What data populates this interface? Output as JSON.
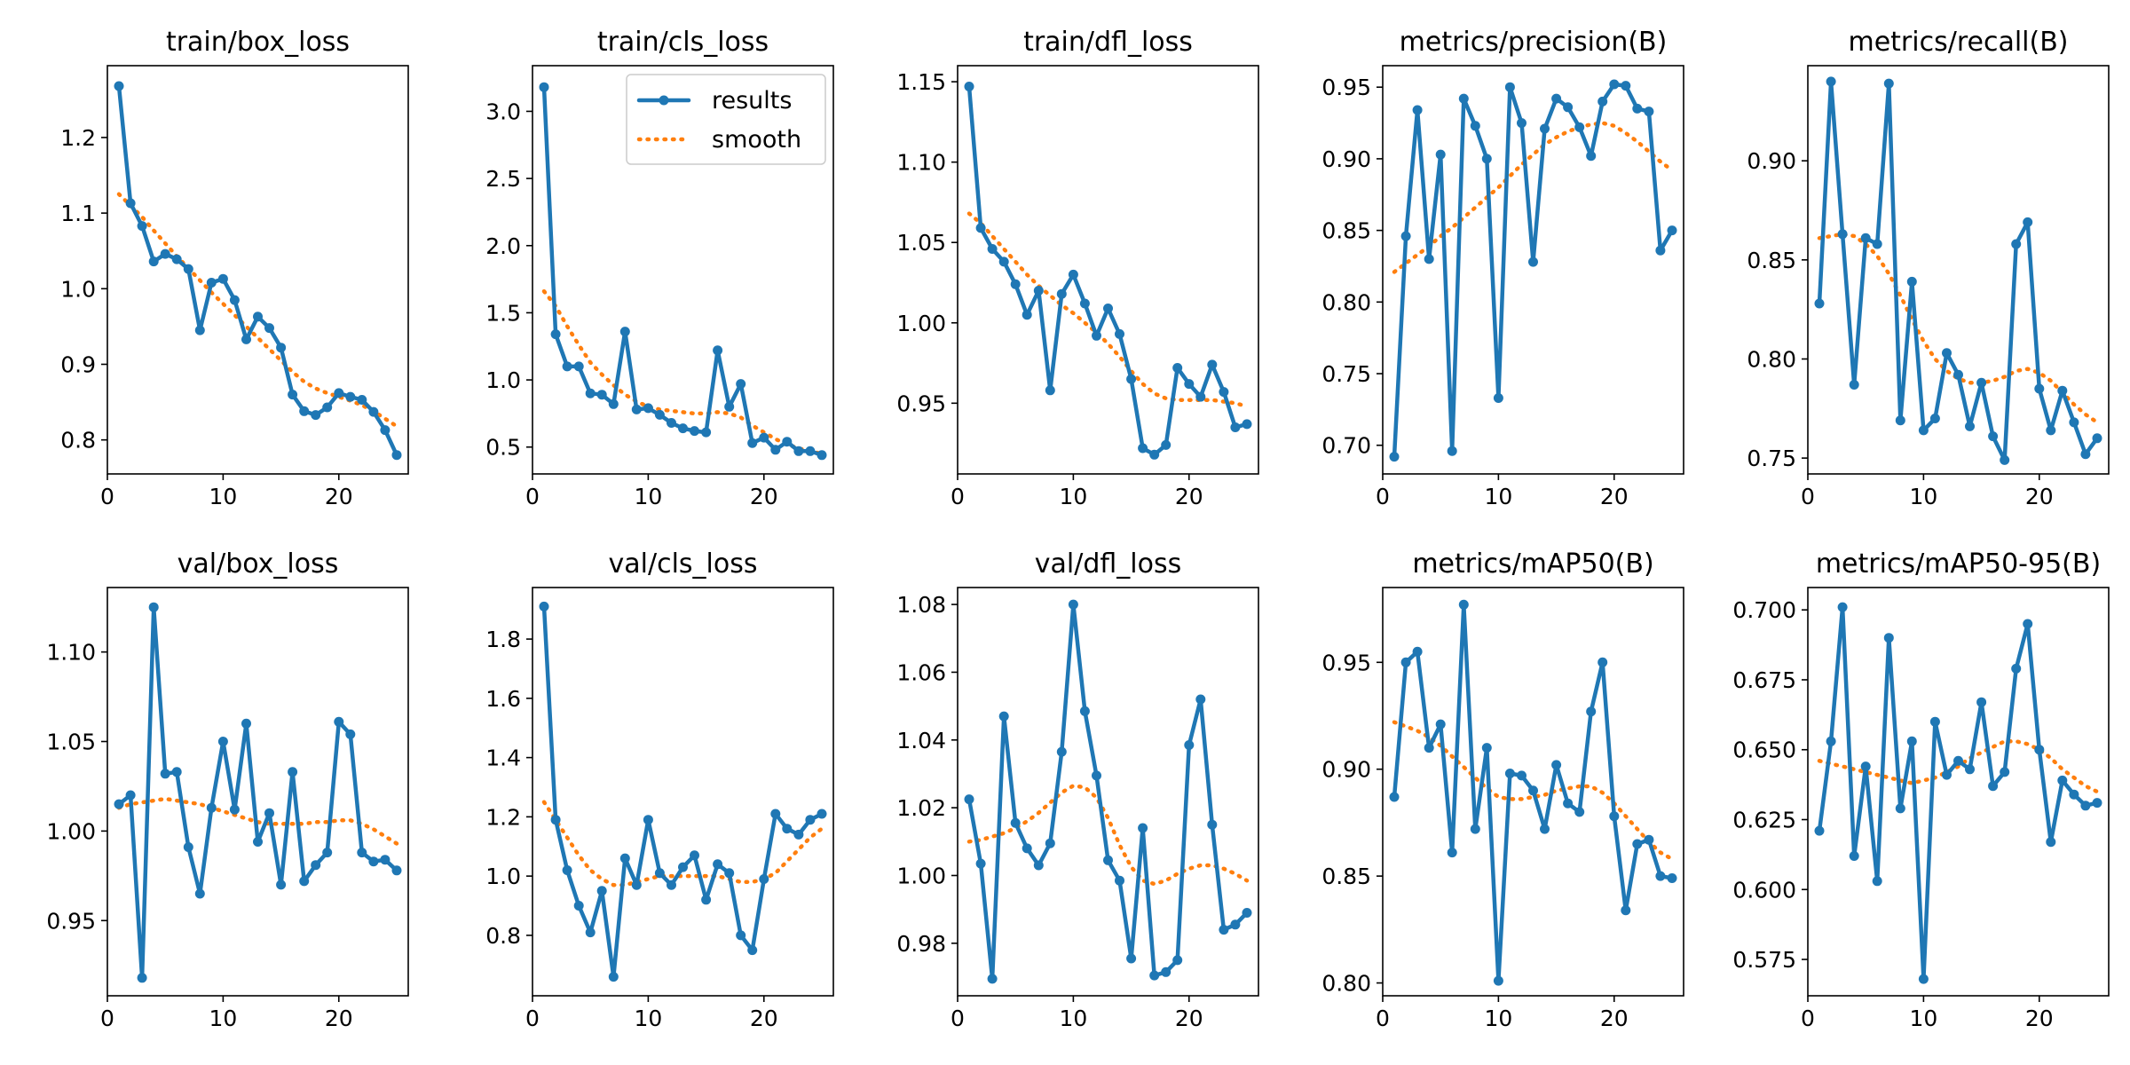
{
  "colors": {
    "results": "#1f77b4",
    "smooth": "#ff7f0e"
  },
  "chart_data": [
    {
      "type": "line",
      "title": "train/box_loss",
      "xlim": [
        0,
        26
      ],
      "ylim": [
        0.755,
        1.295
      ],
      "xticks": [
        0,
        10,
        20
      ],
      "yticks": [
        0.8,
        0.9,
        1.0,
        1.1,
        1.2
      ],
      "ytick_labels": [
        "0.8",
        "0.9",
        "1.0",
        "1.1",
        "1.2"
      ],
      "x": [
        1,
        2,
        3,
        4,
        5,
        6,
        7,
        8,
        9,
        10,
        11,
        12,
        13,
        14,
        15,
        16,
        17,
        18,
        19,
        20,
        21,
        22,
        23,
        24,
        25
      ],
      "series": [
        {
          "name": "results",
          "values": [
            1.268,
            1.113,
            1.083,
            1.036,
            1.046,
            1.039,
            1.026,
            0.945,
            1.008,
            1.013,
            0.985,
            0.933,
            0.963,
            0.948,
            0.922,
            0.86,
            0.838,
            0.833,
            0.843,
            0.862,
            0.857,
            0.853,
            0.837,
            0.813,
            0.78
          ]
        },
        {
          "name": "smooth",
          "values": [
            1.125,
            1.11,
            1.095,
            1.077,
            1.06,
            1.043,
            1.027,
            1.011,
            0.995,
            0.98,
            0.965,
            0.95,
            0.935,
            0.92,
            0.905,
            0.89,
            0.877,
            0.868,
            0.862,
            0.857,
            0.852,
            0.846,
            0.838,
            0.828,
            0.818
          ]
        }
      ],
      "legend": false
    },
    {
      "type": "line",
      "title": "train/cls_loss",
      "xlim": [
        0,
        26
      ],
      "ylim": [
        0.3,
        3.34
      ],
      "xticks": [
        0,
        10,
        20
      ],
      "yticks": [
        0.5,
        1.0,
        1.5,
        2.0,
        2.5,
        3.0
      ],
      "ytick_labels": [
        "0.5",
        "1.0",
        "1.5",
        "2.0",
        "2.5",
        "3.0"
      ],
      "x": [
        1,
        2,
        3,
        4,
        5,
        6,
        7,
        8,
        9,
        10,
        11,
        12,
        13,
        14,
        15,
        16,
        17,
        18,
        19,
        20,
        21,
        22,
        23,
        24,
        25
      ],
      "series": [
        {
          "name": "results",
          "values": [
            3.18,
            1.34,
            1.1,
            1.1,
            0.9,
            0.89,
            0.82,
            1.36,
            0.78,
            0.79,
            0.74,
            0.68,
            0.64,
            0.62,
            0.61,
            1.22,
            0.8,
            0.97,
            0.53,
            0.57,
            0.48,
            0.54,
            0.47,
            0.47,
            0.44
          ]
        },
        {
          "name": "smooth",
          "values": [
            1.66,
            1.55,
            1.4,
            1.26,
            1.13,
            1.04,
            0.96,
            0.89,
            0.84,
            0.8,
            0.78,
            0.77,
            0.76,
            0.75,
            0.75,
            0.76,
            0.75,
            0.72,
            0.66,
            0.61,
            0.56,
            0.52,
            0.49,
            0.47,
            0.45
          ]
        }
      ],
      "legend": true,
      "legend_position": "upper right",
      "legend_labels": [
        "results",
        "smooth"
      ]
    },
    {
      "type": "line",
      "title": "train/dfl_loss",
      "xlim": [
        0,
        26
      ],
      "ylim": [
        0.906,
        1.16
      ],
      "xticks": [
        0,
        10,
        20
      ],
      "yticks": [
        0.95,
        1.0,
        1.05,
        1.1,
        1.15
      ],
      "ytick_labels": [
        "0.95",
        "1.00",
        "1.05",
        "1.10",
        "1.15"
      ],
      "x": [
        1,
        2,
        3,
        4,
        5,
        6,
        7,
        8,
        9,
        10,
        11,
        12,
        13,
        14,
        15,
        16,
        17,
        18,
        19,
        20,
        21,
        22,
        23,
        24,
        25
      ],
      "series": [
        {
          "name": "results",
          "values": [
            1.147,
            1.059,
            1.046,
            1.038,
            1.024,
            1.005,
            1.02,
            0.958,
            1.018,
            1.03,
            1.012,
            0.992,
            1.009,
            0.993,
            0.965,
            0.922,
            0.918,
            0.924,
            0.972,
            0.962,
            0.954,
            0.974,
            0.957,
            0.935,
            0.937
          ]
        },
        {
          "name": "smooth",
          "values": [
            1.068,
            1.062,
            1.054,
            1.046,
            1.038,
            1.03,
            1.023,
            1.017,
            1.011,
            1.006,
            1.0,
            0.994,
            0.987,
            0.979,
            0.97,
            0.962,
            0.956,
            0.953,
            0.952,
            0.952,
            0.952,
            0.952,
            0.951,
            0.95,
            0.948
          ]
        }
      ],
      "legend": false
    },
    {
      "type": "line",
      "title": "metrics/precision(B)",
      "xlim": [
        0,
        26
      ],
      "ylim": [
        0.68,
        0.965
      ],
      "xticks": [
        0,
        10,
        20
      ],
      "yticks": [
        0.7,
        0.75,
        0.8,
        0.85,
        0.9,
        0.95
      ],
      "ytick_labels": [
        "0.70",
        "0.75",
        "0.80",
        "0.85",
        "0.90",
        "0.95"
      ],
      "x": [
        1,
        2,
        3,
        4,
        5,
        6,
        7,
        8,
        9,
        10,
        11,
        12,
        13,
        14,
        15,
        16,
        17,
        18,
        19,
        20,
        21,
        22,
        23,
        24,
        25
      ],
      "series": [
        {
          "name": "results",
          "values": [
            0.692,
            0.846,
            0.934,
            0.83,
            0.903,
            0.696,
            0.942,
            0.923,
            0.9,
            0.733,
            0.95,
            0.925,
            0.828,
            0.921,
            0.942,
            0.936,
            0.922,
            0.902,
            0.94,
            0.952,
            0.951,
            0.935,
            0.933,
            0.836,
            0.85
          ]
        },
        {
          "name": "smooth",
          "values": [
            0.821,
            0.827,
            0.833,
            0.839,
            0.846,
            0.852,
            0.859,
            0.866,
            0.873,
            0.88,
            0.888,
            0.896,
            0.903,
            0.91,
            0.915,
            0.919,
            0.922,
            0.924,
            0.925,
            0.923,
            0.918,
            0.912,
            0.905,
            0.898,
            0.892
          ]
        }
      ],
      "legend": false
    },
    {
      "type": "line",
      "title": "metrics/recall(B)",
      "xlim": [
        0,
        26
      ],
      "ylim": [
        0.742,
        0.948
      ],
      "xticks": [
        0,
        10,
        20
      ],
      "yticks": [
        0.75,
        0.8,
        0.85,
        0.9
      ],
      "ytick_labels": [
        "0.75",
        "0.80",
        "0.85",
        "0.90"
      ],
      "x": [
        1,
        2,
        3,
        4,
        5,
        6,
        7,
        8,
        9,
        10,
        11,
        12,
        13,
        14,
        15,
        16,
        17,
        18,
        19,
        20,
        21,
        22,
        23,
        24,
        25
      ],
      "series": [
        {
          "name": "results",
          "values": [
            0.828,
            0.94,
            0.863,
            0.787,
            0.861,
            0.858,
            0.939,
            0.769,
            0.839,
            0.764,
            0.77,
            0.803,
            0.792,
            0.766,
            0.788,
            0.761,
            0.749,
            0.858,
            0.869,
            0.785,
            0.764,
            0.784,
            0.768,
            0.752,
            0.76
          ]
        },
        {
          "name": "smooth",
          "values": [
            0.861,
            0.862,
            0.863,
            0.862,
            0.858,
            0.852,
            0.843,
            0.832,
            0.82,
            0.809,
            0.8,
            0.794,
            0.79,
            0.788,
            0.788,
            0.789,
            0.791,
            0.794,
            0.795,
            0.793,
            0.789,
            0.783,
            0.777,
            0.772,
            0.768
          ]
        }
      ],
      "legend": false
    },
    {
      "type": "line",
      "title": "val/box_loss",
      "xlim": [
        0,
        26
      ],
      "ylim": [
        0.908,
        1.136
      ],
      "xticks": [
        0,
        10,
        20
      ],
      "yticks": [
        0.95,
        1.0,
        1.05,
        1.1
      ],
      "ytick_labels": [
        "0.95",
        "1.00",
        "1.05",
        "1.10"
      ],
      "x": [
        1,
        2,
        3,
        4,
        5,
        6,
        7,
        8,
        9,
        10,
        11,
        12,
        13,
        14,
        15,
        16,
        17,
        18,
        19,
        20,
        21,
        22,
        23,
        24,
        25
      ],
      "series": [
        {
          "name": "results",
          "values": [
            1.015,
            1.02,
            0.918,
            1.125,
            1.032,
            1.033,
            0.991,
            0.965,
            1.013,
            1.05,
            1.012,
            1.06,
            0.994,
            1.01,
            0.97,
            1.033,
            0.972,
            0.981,
            0.988,
            1.061,
            1.054,
            0.988,
            0.983,
            0.984,
            0.978
          ]
        },
        {
          "name": "smooth",
          "values": [
            1.013,
            1.015,
            1.016,
            1.017,
            1.018,
            1.017,
            1.016,
            1.015,
            1.013,
            1.011,
            1.009,
            1.007,
            1.005,
            1.004,
            1.004,
            1.004,
            1.004,
            1.005,
            1.005,
            1.006,
            1.006,
            1.004,
            1.001,
            0.997,
            0.993
          ]
        }
      ],
      "legend": false
    },
    {
      "type": "line",
      "title": "val/cls_loss",
      "xlim": [
        0,
        26
      ],
      "ylim": [
        0.596,
        1.974
      ],
      "xticks": [
        0,
        10,
        20
      ],
      "yticks": [
        0.8,
        1.0,
        1.2,
        1.4,
        1.6,
        1.8
      ],
      "ytick_labels": [
        "0.8",
        "1.0",
        "1.2",
        "1.4",
        "1.6",
        "1.8"
      ],
      "x": [
        1,
        2,
        3,
        4,
        5,
        6,
        7,
        8,
        9,
        10,
        11,
        12,
        13,
        14,
        15,
        16,
        17,
        18,
        19,
        20,
        21,
        22,
        23,
        24,
        25
      ],
      "series": [
        {
          "name": "results",
          "values": [
            1.91,
            1.19,
            1.02,
            0.9,
            0.81,
            0.95,
            0.66,
            1.06,
            0.97,
            1.19,
            1.01,
            0.97,
            1.03,
            1.07,
            0.92,
            1.04,
            1.01,
            0.8,
            0.75,
            0.99,
            1.21,
            1.16,
            1.14,
            1.19,
            1.21
          ]
        },
        {
          "name": "smooth",
          "values": [
            1.25,
            1.19,
            1.13,
            1.07,
            1.02,
            0.99,
            0.97,
            0.97,
            0.98,
            0.99,
            1.0,
            1.0,
            1.0,
            1.0,
            1.0,
            1.0,
            0.99,
            0.98,
            0.98,
            0.99,
            1.01,
            1.05,
            1.09,
            1.13,
            1.16
          ]
        }
      ],
      "legend": false
    },
    {
      "type": "line",
      "title": "val/dfl_loss",
      "xlim": [
        0,
        26
      ],
      "ylim": [
        0.9645,
        1.085
      ],
      "xticks": [
        0,
        10,
        20
      ],
      "yticks": [
        0.98,
        1.0,
        1.02,
        1.04,
        1.06,
        1.08
      ],
      "ytick_labels": [
        "0.98",
        "1.00",
        "1.02",
        "1.04",
        "1.06",
        "1.08"
      ],
      "x": [
        1,
        2,
        3,
        4,
        5,
        6,
        7,
        8,
        9,
        10,
        11,
        12,
        13,
        14,
        15,
        16,
        17,
        18,
        19,
        20,
        21,
        22,
        23,
        24,
        25
      ],
      "series": [
        {
          "name": "results",
          "values": [
            1.0225,
            1.0035,
            0.9695,
            1.047,
            1.0155,
            1.008,
            1.003,
            1.0095,
            1.0365,
            1.08,
            1.0485,
            1.0295,
            1.0045,
            0.9985,
            0.9755,
            1.014,
            0.9705,
            0.9715,
            0.975,
            1.0385,
            1.052,
            1.015,
            0.984,
            0.9855,
            0.989
          ]
        },
        {
          "name": "smooth",
          "values": [
            1.01,
            1.0105,
            1.0115,
            1.0125,
            1.014,
            1.016,
            1.0185,
            1.0215,
            1.0245,
            1.0265,
            1.026,
            1.023,
            1.017,
            1.009,
            1.0025,
            0.9985,
            0.9975,
            0.9985,
            1.0005,
            1.002,
            1.003,
            1.003,
            1.002,
            1.0005,
            0.9985
          ]
        }
      ],
      "legend": false
    },
    {
      "type": "line",
      "title": "metrics/mAP50(B)",
      "xlim": [
        0,
        26
      ],
      "ylim": [
        0.794,
        0.985
      ],
      "xticks": [
        0,
        10,
        20
      ],
      "yticks": [
        0.8,
        0.85,
        0.9,
        0.95
      ],
      "ytick_labels": [
        "0.80",
        "0.85",
        "0.90",
        "0.95"
      ],
      "x": [
        1,
        2,
        3,
        4,
        5,
        6,
        7,
        8,
        9,
        10,
        11,
        12,
        13,
        14,
        15,
        16,
        17,
        18,
        19,
        20,
        21,
        22,
        23,
        24,
        25
      ],
      "series": [
        {
          "name": "results",
          "values": [
            0.887,
            0.95,
            0.955,
            0.91,
            0.921,
            0.861,
            0.977,
            0.872,
            0.91,
            0.801,
            0.898,
            0.897,
            0.89,
            0.872,
            0.902,
            0.884,
            0.88,
            0.927,
            0.95,
            0.878,
            0.834,
            0.865,
            0.867,
            0.85,
            0.849
          ]
        },
        {
          "name": "smooth",
          "values": [
            0.922,
            0.92,
            0.918,
            0.915,
            0.911,
            0.906,
            0.901,
            0.896,
            0.891,
            0.887,
            0.886,
            0.886,
            0.887,
            0.888,
            0.89,
            0.891,
            0.892,
            0.892,
            0.889,
            0.884,
            0.878,
            0.872,
            0.866,
            0.861,
            0.858
          ]
        }
      ],
      "legend": false
    },
    {
      "type": "line",
      "title": "metrics/mAP50-95(B)",
      "xlim": [
        0,
        26
      ],
      "ylim": [
        0.562,
        0.708
      ],
      "xticks": [
        0,
        10,
        20
      ],
      "yticks": [
        0.575,
        0.6,
        0.625,
        0.65,
        0.675,
        0.7
      ],
      "ytick_labels": [
        "0.575",
        "0.600",
        "0.625",
        "0.650",
        "0.675",
        "0.700"
      ],
      "x": [
        1,
        2,
        3,
        4,
        5,
        6,
        7,
        8,
        9,
        10,
        11,
        12,
        13,
        14,
        15,
        16,
        17,
        18,
        19,
        20,
        21,
        22,
        23,
        24,
        25
      ],
      "series": [
        {
          "name": "results",
          "values": [
            0.621,
            0.653,
            0.701,
            0.612,
            0.644,
            0.603,
            0.69,
            0.629,
            0.653,
            0.568,
            0.66,
            0.641,
            0.646,
            0.643,
            0.667,
            0.637,
            0.642,
            0.679,
            0.695,
            0.65,
            0.617,
            0.639,
            0.634,
            0.63,
            0.631
          ]
        },
        {
          "name": "smooth",
          "values": [
            0.646,
            0.645,
            0.644,
            0.643,
            0.642,
            0.641,
            0.64,
            0.639,
            0.638,
            0.639,
            0.64,
            0.642,
            0.644,
            0.647,
            0.649,
            0.651,
            0.653,
            0.653,
            0.652,
            0.65,
            0.647,
            0.643,
            0.64,
            0.637,
            0.635
          ]
        }
      ],
      "legend": false
    }
  ]
}
